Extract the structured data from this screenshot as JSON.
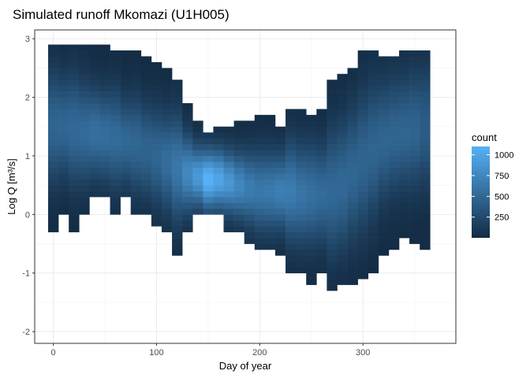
{
  "chart_data": {
    "type": "heatmap",
    "title": "Simulated runoff Mkomazi (U1H005)",
    "xlabel": "Day of year",
    "ylabel": "Log Q [m³/s]",
    "xlim": [
      -18,
      390
    ],
    "ylim": [
      -2.2,
      3.15
    ],
    "x_ticks": [
      0,
      100,
      200,
      300
    ],
    "y_ticks": [
      -2,
      -1,
      0,
      1,
      2,
      3
    ],
    "x_tick_labels": [
      "0",
      "100",
      "200",
      "300"
    ],
    "y_tick_labels": [
      "-2",
      "-1",
      "0",
      "1",
      "2",
      "3"
    ],
    "bin_width_x": 10,
    "bin_width_y": 0.1,
    "grid": true,
    "legend": {
      "title": "count",
      "position": "right",
      "breaks": [
        250,
        500,
        750,
        1000
      ],
      "labels": [
        "250",
        "500",
        "750",
        "1000"
      ],
      "range": [
        1,
        1100
      ],
      "color_low": "#132b43",
      "color_high": "#56b1f7"
    },
    "columns": [
      {
        "x": 0,
        "ymin": -0.3,
        "ymax": 2.9,
        "peak_y": 1.5,
        "peak_count": 470
      },
      {
        "x": 10,
        "ymin": 0.0,
        "ymax": 2.9,
        "peak_y": 1.5,
        "peak_count": 480
      },
      {
        "x": 20,
        "ymin": -0.3,
        "ymax": 2.9,
        "peak_y": 1.45,
        "peak_count": 500
      },
      {
        "x": 30,
        "ymin": 0.0,
        "ymax": 2.9,
        "peak_y": 1.4,
        "peak_count": 520
      },
      {
        "x": 40,
        "ymin": 0.3,
        "ymax": 2.9,
        "peak_y": 1.4,
        "peak_count": 560
      },
      {
        "x": 50,
        "ymin": 0.3,
        "ymax": 2.9,
        "peak_y": 1.35,
        "peak_count": 540
      },
      {
        "x": 60,
        "ymin": 0.0,
        "ymax": 2.8,
        "peak_y": 1.3,
        "peak_count": 520
      },
      {
        "x": 70,
        "ymin": 0.3,
        "ymax": 2.8,
        "peak_y": 1.25,
        "peak_count": 500
      },
      {
        "x": 80,
        "ymin": 0.0,
        "ymax": 2.8,
        "peak_y": 1.2,
        "peak_count": 480
      },
      {
        "x": 90,
        "ymin": 0.0,
        "ymax": 2.7,
        "peak_y": 1.1,
        "peak_count": 460
      },
      {
        "x": 100,
        "ymin": -0.2,
        "ymax": 2.6,
        "peak_y": 1.0,
        "peak_count": 480
      },
      {
        "x": 110,
        "ymin": -0.3,
        "ymax": 2.5,
        "peak_y": 0.9,
        "peak_count": 540
      },
      {
        "x": 120,
        "ymin": -0.7,
        "ymax": 2.3,
        "peak_y": 0.8,
        "peak_count": 620
      },
      {
        "x": 130,
        "ymin": -0.3,
        "ymax": 1.9,
        "peak_y": 0.7,
        "peak_count": 760
      },
      {
        "x": 140,
        "ymin": 0.0,
        "ymax": 1.6,
        "peak_y": 0.65,
        "peak_count": 900
      },
      {
        "x": 150,
        "ymin": 0.0,
        "ymax": 1.4,
        "peak_y": 0.6,
        "peak_count": 1100
      },
      {
        "x": 160,
        "ymin": 0.0,
        "ymax": 1.5,
        "peak_y": 0.6,
        "peak_count": 1000
      },
      {
        "x": 170,
        "ymin": -0.3,
        "ymax": 1.5,
        "peak_y": 0.55,
        "peak_count": 880
      },
      {
        "x": 180,
        "ymin": -0.3,
        "ymax": 1.6,
        "peak_y": 0.5,
        "peak_count": 760
      },
      {
        "x": 190,
        "ymin": -0.5,
        "ymax": 1.6,
        "peak_y": 0.45,
        "peak_count": 660
      },
      {
        "x": 200,
        "ymin": -0.6,
        "ymax": 1.7,
        "peak_y": 0.4,
        "peak_count": 620
      },
      {
        "x": 210,
        "ymin": -0.6,
        "ymax": 1.7,
        "peak_y": 0.4,
        "peak_count": 640
      },
      {
        "x": 220,
        "ymin": -0.7,
        "ymax": 1.5,
        "peak_y": 0.4,
        "peak_count": 680
      },
      {
        "x": 230,
        "ymin": -1.0,
        "ymax": 1.8,
        "peak_y": 0.4,
        "peak_count": 660
      },
      {
        "x": 240,
        "ymin": -1.0,
        "ymax": 1.8,
        "peak_y": 0.35,
        "peak_count": 600
      },
      {
        "x": 250,
        "ymin": -1.2,
        "ymax": 1.7,
        "peak_y": 0.35,
        "peak_count": 560
      },
      {
        "x": 260,
        "ymin": -1.0,
        "ymax": 1.8,
        "peak_y": 0.35,
        "peak_count": 520
      },
      {
        "x": 270,
        "ymin": -1.3,
        "ymax": 2.3,
        "peak_y": 0.4,
        "peak_count": 500
      },
      {
        "x": 280,
        "ymin": -1.2,
        "ymax": 2.4,
        "peak_y": 0.5,
        "peak_count": 500
      },
      {
        "x": 290,
        "ymin": -1.2,
        "ymax": 2.5,
        "peak_y": 0.7,
        "peak_count": 480
      },
      {
        "x": 300,
        "ymin": -1.1,
        "ymax": 2.8,
        "peak_y": 0.9,
        "peak_count": 470
      },
      {
        "x": 310,
        "ymin": -1.0,
        "ymax": 2.8,
        "peak_y": 1.1,
        "peak_count": 470
      },
      {
        "x": 320,
        "ymin": -0.7,
        "ymax": 2.7,
        "peak_y": 1.25,
        "peak_count": 470
      },
      {
        "x": 330,
        "ymin": -0.6,
        "ymax": 2.7,
        "peak_y": 1.35,
        "peak_count": 470
      },
      {
        "x": 340,
        "ymin": -0.4,
        "ymax": 2.8,
        "peak_y": 1.4,
        "peak_count": 470
      },
      {
        "x": 350,
        "ymin": -0.5,
        "ymax": 2.8,
        "peak_y": 1.45,
        "peak_count": 460
      },
      {
        "x": 360,
        "ymin": -0.6,
        "ymax": 2.8,
        "peak_y": 1.5,
        "peak_count": 400
      }
    ]
  }
}
